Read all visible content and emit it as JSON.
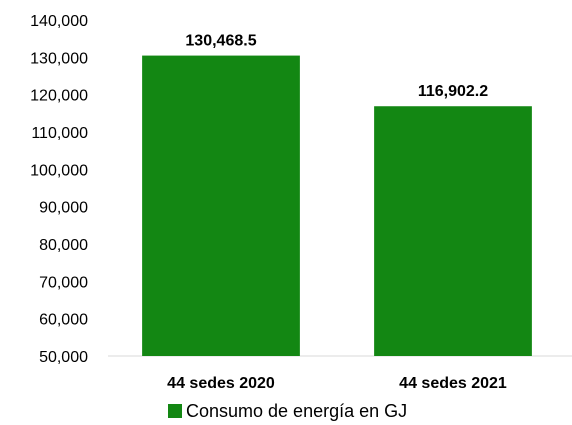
{
  "chart_data": {
    "type": "bar",
    "categories": [
      "44 sedes 2020",
      "44 sedes 2021"
    ],
    "series": [
      {
        "name": "Consumo de energía en  GJ",
        "values": [
          130468.5,
          116902.2
        ],
        "color": "#138713"
      }
    ],
    "data_labels": [
      "130,468.5",
      "116,902.2"
    ],
    "ylim": [
      50000,
      140000
    ],
    "yticks": [
      "50,000",
      "60,000",
      "70,000",
      "80,000",
      "90,000",
      "100,000",
      "110,000",
      "120,000",
      "130,000",
      "140,000"
    ],
    "ytick_values": [
      50000,
      60000,
      70000,
      80000,
      90000,
      100000,
      110000,
      120000,
      130000,
      140000
    ],
    "grid": false,
    "legend_position": "bottom"
  }
}
